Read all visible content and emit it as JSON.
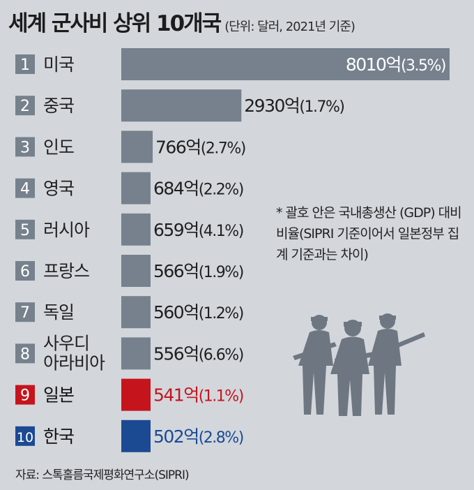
{
  "title": "세계 군사비 상위 10개국",
  "unit": "(단위: 달러, 2021년 기준)",
  "note": "* 괄호 안은 국내총생산 (GDP) 대비 비율(SIPRI 기준이어서 일본정부 집계 기준과는 차이)",
  "source": "자료: 스톡홀름국제평화연구소(SIPRI)",
  "colors": {
    "default_bar": "#76818d",
    "japan_bar": "#c6141d",
    "korea_bar": "#1b4a93",
    "rank_badge": "#76818d",
    "japan_text": "#c6141d",
    "korea_text": "#1b4a93"
  },
  "chart_data": {
    "type": "bar",
    "orientation": "horizontal",
    "series_unit": "억 달러",
    "rows": [
      {
        "rank": "1",
        "country": [
          "미국"
        ],
        "value": 8010,
        "label": "8010억",
        "pct": "(3.5%)",
        "color": "#76818d",
        "text_color": "#1f1f1f"
      },
      {
        "rank": "2",
        "country": [
          "중국"
        ],
        "value": 2930,
        "label": "2930억",
        "pct": "(1.7%)",
        "color": "#76818d",
        "text_color": "#1f1f1f"
      },
      {
        "rank": "3",
        "country": [
          "인도"
        ],
        "value": 766,
        "label": "766억",
        "pct": "(2.7%)",
        "color": "#76818d",
        "text_color": "#1f1f1f"
      },
      {
        "rank": "4",
        "country": [
          "영국"
        ],
        "value": 684,
        "label": "684억",
        "pct": "(2.2%)",
        "color": "#76818d",
        "text_color": "#1f1f1f"
      },
      {
        "rank": "5",
        "country": [
          "러시아"
        ],
        "value": 659,
        "label": "659억",
        "pct": "(4.1%)",
        "color": "#76818d",
        "text_color": "#1f1f1f"
      },
      {
        "rank": "6",
        "country": [
          "프랑스"
        ],
        "value": 566,
        "label": "566억",
        "pct": "(1.9%)",
        "color": "#76818d",
        "text_color": "#1f1f1f"
      },
      {
        "rank": "7",
        "country": [
          "독일"
        ],
        "value": 560,
        "label": "560억",
        "pct": "(1.2%)",
        "color": "#76818d",
        "text_color": "#1f1f1f"
      },
      {
        "rank": "8",
        "country": [
          "사우디",
          "아라비아"
        ],
        "value": 556,
        "label": "556억",
        "pct": "(6.6%)",
        "color": "#76818d",
        "text_color": "#1f1f1f"
      },
      {
        "rank": "9",
        "country": [
          "일본"
        ],
        "value": 541,
        "label": "541억",
        "pct": "(1.1%)",
        "color": "#c6141d",
        "text_color": "#c6141d"
      },
      {
        "rank": "10",
        "country": [
          "한국"
        ],
        "value": 502,
        "label": "502억",
        "pct": "(2.8%)",
        "color": "#1b4a93",
        "text_color": "#1b4a93"
      }
    ]
  }
}
